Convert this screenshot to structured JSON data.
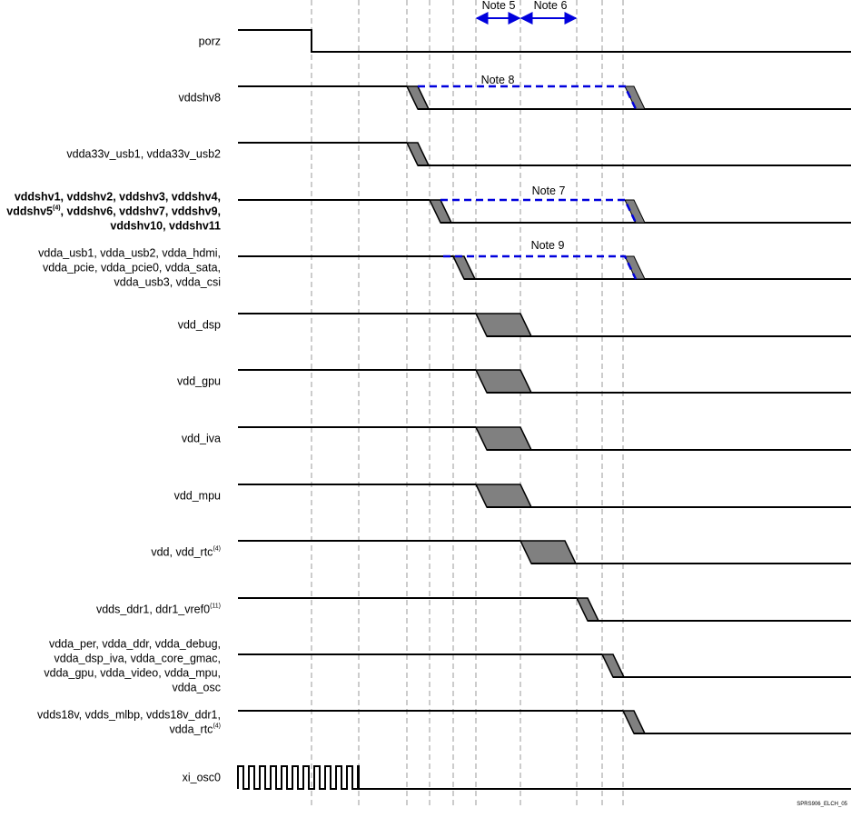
{
  "signals": [
    {
      "lines": [
        [
          "porz"
        ]
      ]
    },
    {
      "lines": [
        [
          "vddshv8"
        ]
      ]
    },
    {
      "lines": [
        [
          "vdda33v_usb1, vdda33v_usb2"
        ]
      ]
    },
    {
      "lines": [
        [
          "vddshv1, vddshv2, vddshv3, vddshv4,"
        ],
        [
          "vddshv5",
          {
            "sup": "(4)"
          },
          ", vddshv6, vddshv7, vddshv9,"
        ],
        [
          "vddshv10, vddshv11"
        ]
      ],
      "bold": true
    },
    {
      "lines": [
        [
          "vdda_usb1, vdda_usb2, vdda_hdmi,"
        ],
        [
          "vdda_pcie, vdda_pcie0, vdda_sata,"
        ],
        [
          "vdda_usb3, vdda_csi"
        ]
      ]
    },
    {
      "lines": [
        [
          "vdd_dsp"
        ]
      ]
    },
    {
      "lines": [
        [
          "vdd_gpu"
        ]
      ]
    },
    {
      "lines": [
        [
          "vdd_iva"
        ]
      ]
    },
    {
      "lines": [
        [
          "vdd_mpu"
        ]
      ]
    },
    {
      "lines": [
        [
          "vdd, vdd_rtc",
          {
            "sup": "(4)"
          }
        ]
      ]
    },
    {
      "lines": [
        [
          "vdds_ddr1, ddr1_vref0",
          {
            "sup": "(11)"
          }
        ]
      ]
    },
    {
      "lines": [
        [
          "vdda_per, vdda_ddr, vdda_debug,"
        ],
        [
          "vdda_dsp_iva, vdda_core_gmac,"
        ],
        [
          "vdda_gpu, vdda_video, vdda_mpu,"
        ],
        [
          "vdda_osc"
        ]
      ]
    },
    {
      "lines": [
        [
          "vdds18v, vdds_mlbp, vdds18v_ddr1,"
        ],
        [
          "vdda_rtc",
          {
            "sup": "(4)"
          }
        ]
      ]
    },
    {
      "lines": [
        [
          "xi_osc0"
        ]
      ]
    }
  ],
  "notes": [
    "Note 5",
    "Note 6",
    "Note 8",
    "Note 7",
    "Note 9"
  ],
  "footer": "SPRS906_ELCH_05"
}
